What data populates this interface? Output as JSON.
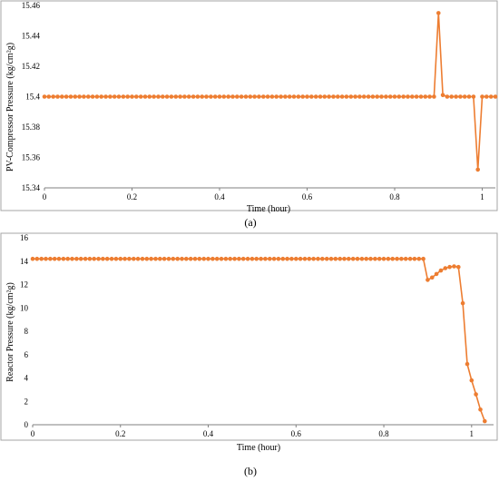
{
  "colors": {
    "series": "#ED7D31",
    "axis": "#808080",
    "border": "#a6a6a6"
  },
  "chart_data": [
    {
      "type": "line",
      "panel_label": "(a)",
      "xlabel": "Time (hour)",
      "ylabel": "PV-Compressor Pressure (kg/cm²g)",
      "xlim": [
        0,
        1.03
      ],
      "ylim": [
        15.34,
        15.46
      ],
      "xticks": [
        "0",
        "0.2",
        "0.4",
        "0.6",
        "0.8",
        "1"
      ],
      "xtick_values": [
        0,
        0.2,
        0.4,
        0.6,
        0.8,
        1
      ],
      "yticks": [
        "15.46",
        "15.44",
        "15.42",
        "15.4",
        "15.38",
        "15.36",
        "15.34"
      ],
      "ytick_values": [
        15.46,
        15.44,
        15.42,
        15.4,
        15.38,
        15.36,
        15.34
      ],
      "grid": false,
      "series": [
        {
          "x": [
            0,
            0.01,
            0.02,
            0.03,
            0.04,
            0.05,
            0.06,
            0.07,
            0.08,
            0.09,
            0.1,
            0.11,
            0.12,
            0.13,
            0.14,
            0.15,
            0.16,
            0.17,
            0.18,
            0.19,
            0.2,
            0.21,
            0.22,
            0.23,
            0.24,
            0.25,
            0.26,
            0.27,
            0.28,
            0.29,
            0.3,
            0.31,
            0.32,
            0.33,
            0.34,
            0.35,
            0.36,
            0.37,
            0.38,
            0.39,
            0.4,
            0.41,
            0.42,
            0.43,
            0.44,
            0.45,
            0.46,
            0.47,
            0.48,
            0.49,
            0.5,
            0.51,
            0.52,
            0.53,
            0.54,
            0.55,
            0.56,
            0.57,
            0.58,
            0.59,
            0.6,
            0.61,
            0.62,
            0.63,
            0.64,
            0.65,
            0.66,
            0.67,
            0.68,
            0.69,
            0.7,
            0.71,
            0.72,
            0.73,
            0.74,
            0.75,
            0.76,
            0.77,
            0.78,
            0.79,
            0.8,
            0.81,
            0.82,
            0.83,
            0.84,
            0.85,
            0.86,
            0.87,
            0.88,
            0.89,
            0.9,
            0.91,
            0.92,
            0.93,
            0.94,
            0.95,
            0.96,
            0.97,
            0.98,
            0.99,
            1.0,
            1.01,
            1.02,
            1.03
          ],
          "y": [
            15.4,
            15.4,
            15.4,
            15.4,
            15.4,
            15.4,
            15.4,
            15.4,
            15.4,
            15.4,
            15.4,
            15.4,
            15.4,
            15.4,
            15.4,
            15.4,
            15.4,
            15.4,
            15.4,
            15.4,
            15.4,
            15.4,
            15.4,
            15.4,
            15.4,
            15.4,
            15.4,
            15.4,
            15.4,
            15.4,
            15.4,
            15.4,
            15.4,
            15.4,
            15.4,
            15.4,
            15.4,
            15.4,
            15.4,
            15.4,
            15.4,
            15.4,
            15.4,
            15.4,
            15.4,
            15.4,
            15.4,
            15.4,
            15.4,
            15.4,
            15.4,
            15.4,
            15.4,
            15.4,
            15.4,
            15.4,
            15.4,
            15.4,
            15.4,
            15.4,
            15.4,
            15.4,
            15.4,
            15.4,
            15.4,
            15.4,
            15.4,
            15.4,
            15.4,
            15.4,
            15.4,
            15.4,
            15.4,
            15.4,
            15.4,
            15.4,
            15.4,
            15.4,
            15.4,
            15.4,
            15.4,
            15.4,
            15.4,
            15.4,
            15.4,
            15.4,
            15.4,
            15.4,
            15.4,
            15.4,
            15.455,
            15.401,
            15.4,
            15.4,
            15.4,
            15.4,
            15.4,
            15.4,
            15.4,
            15.352,
            15.4,
            15.4,
            15.4,
            15.4
          ]
        }
      ]
    },
    {
      "type": "line",
      "panel_label": "(b)",
      "xlabel": "Time (hour)",
      "ylabel": "Reactor Pressure (kg/cm²g)",
      "xlim": [
        0,
        1.05
      ],
      "ylim": [
        0,
        16
      ],
      "xticks": [
        "0",
        "0.2",
        "0.4",
        "0.6",
        "0.8",
        "1"
      ],
      "xtick_values": [
        0,
        0.2,
        0.4,
        0.6,
        0.8,
        1
      ],
      "yticks": [
        "16",
        "14",
        "12",
        "10",
        "8",
        "6",
        "4",
        "2",
        "0"
      ],
      "ytick_values": [
        16,
        14,
        12,
        10,
        8,
        6,
        4,
        2,
        0
      ],
      "grid": false,
      "series": [
        {
          "x": [
            0,
            0.01,
            0.02,
            0.03,
            0.04,
            0.05,
            0.06,
            0.07,
            0.08,
            0.09,
            0.1,
            0.11,
            0.12,
            0.13,
            0.14,
            0.15,
            0.16,
            0.17,
            0.18,
            0.19,
            0.2,
            0.21,
            0.22,
            0.23,
            0.24,
            0.25,
            0.26,
            0.27,
            0.28,
            0.29,
            0.3,
            0.31,
            0.32,
            0.33,
            0.34,
            0.35,
            0.36,
            0.37,
            0.38,
            0.39,
            0.4,
            0.41,
            0.42,
            0.43,
            0.44,
            0.45,
            0.46,
            0.47,
            0.48,
            0.49,
            0.5,
            0.51,
            0.52,
            0.53,
            0.54,
            0.55,
            0.56,
            0.57,
            0.58,
            0.59,
            0.6,
            0.61,
            0.62,
            0.63,
            0.64,
            0.65,
            0.66,
            0.67,
            0.68,
            0.69,
            0.7,
            0.71,
            0.72,
            0.73,
            0.74,
            0.75,
            0.76,
            0.77,
            0.78,
            0.79,
            0.8,
            0.81,
            0.82,
            0.83,
            0.84,
            0.85,
            0.86,
            0.87,
            0.88,
            0.89,
            0.9,
            0.91,
            0.92,
            0.93,
            0.94,
            0.95,
            0.96,
            0.97,
            0.98,
            0.99,
            1.0,
            1.01,
            1.02,
            1.03
          ],
          "y": [
            14.2,
            14.2,
            14.2,
            14.2,
            14.2,
            14.2,
            14.2,
            14.2,
            14.2,
            14.2,
            14.2,
            14.2,
            14.2,
            14.2,
            14.2,
            14.2,
            14.2,
            14.2,
            14.2,
            14.2,
            14.2,
            14.2,
            14.2,
            14.2,
            14.2,
            14.2,
            14.2,
            14.2,
            14.2,
            14.2,
            14.2,
            14.2,
            14.2,
            14.2,
            14.2,
            14.2,
            14.2,
            14.2,
            14.2,
            14.2,
            14.2,
            14.2,
            14.2,
            14.2,
            14.2,
            14.2,
            14.2,
            14.2,
            14.2,
            14.2,
            14.2,
            14.2,
            14.2,
            14.2,
            14.2,
            14.2,
            14.2,
            14.2,
            14.2,
            14.2,
            14.2,
            14.2,
            14.2,
            14.2,
            14.2,
            14.2,
            14.2,
            14.2,
            14.2,
            14.2,
            14.2,
            14.2,
            14.2,
            14.2,
            14.2,
            14.2,
            14.2,
            14.2,
            14.2,
            14.2,
            14.2,
            14.2,
            14.2,
            14.2,
            14.2,
            14.2,
            14.2,
            14.2,
            14.2,
            14.2,
            12.4,
            12.6,
            12.9,
            13.2,
            13.4,
            13.5,
            13.55,
            13.5,
            10.4,
            5.2,
            3.8,
            2.6,
            1.3,
            0.3
          ]
        }
      ]
    }
  ]
}
